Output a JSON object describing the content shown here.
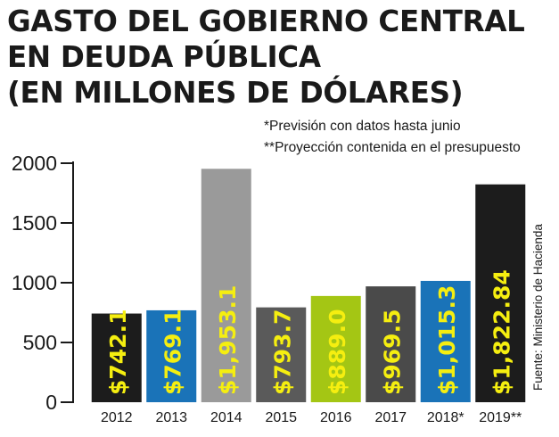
{
  "title_lines": [
    "GASTO DEL GOBIERNO CENTRAL",
    "EN DEUDA PÚBLICA",
    "(EN MILLONES DE DÓLARES)"
  ],
  "notes": [
    "*Previsión con datos hasta junio",
    "**Proyección contenida en el presupuesto"
  ],
  "source": "Fuente: Ministerio de Hacienda",
  "chart_data": {
    "type": "bar",
    "title": "GASTO DEL GOBIERNO CENTRAL EN DEUDA PÚBLICA (EN MILLONES DE DÓLARES)",
    "categories": [
      "2012",
      "2013",
      "2014",
      "2015",
      "2016",
      "2017",
      "2018*",
      "2019**"
    ],
    "values": [
      742.1,
      769.1,
      1953.1,
      793.7,
      889.0,
      969.5,
      1015.3,
      1822.84
    ],
    "value_labels": [
      "$742.1",
      "$769.1",
      "$1,953.1",
      "$793.7",
      "$889.0",
      "$969.5",
      "$1,015.3",
      "$1,822.84"
    ],
    "bar_colors": [
      "#1c1c1c",
      "#1a73b8",
      "#9a9a9a",
      "#5a5a5a",
      "#a4c614",
      "#4a4a4a",
      "#1a73b8",
      "#1c1c1c"
    ],
    "label_color": "#f5ee10",
    "ylim": [
      0,
      2000
    ],
    "yticks": [
      "0",
      "500",
      "1000",
      "1500",
      "2000"
    ],
    "ytick_values": [
      0,
      500,
      1000,
      1500,
      2000
    ],
    "xlabel": "",
    "ylabel": "",
    "grid": false,
    "legend": "none"
  }
}
